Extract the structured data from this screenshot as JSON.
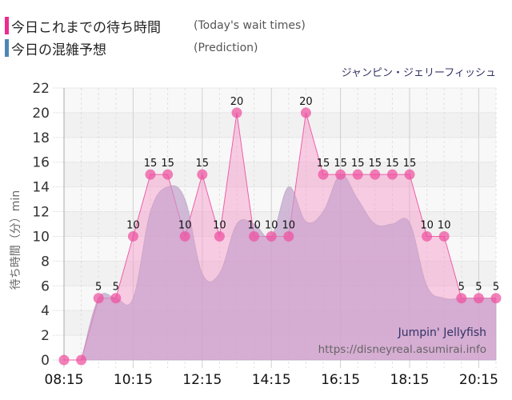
{
  "legend": {
    "today": {
      "label_jp": "今日これまでの待ち時間",
      "label_en": "(Today's wait times)",
      "color": "#ee2a8f"
    },
    "prediction": {
      "label_jp": "今日の混雑予想",
      "label_en": "(Prediction)",
      "color": "#4f86b5"
    }
  },
  "attraction_name": "ジャンピン・ジェリーフィッシュ",
  "watermark": {
    "name": "Jumpin' Jellyfish",
    "url": "https://disneyreal.asumirai.info"
  },
  "chart_data": {
    "type": "area",
    "title": "ジャンピン・ジェリーフィッシュ",
    "xlabel": "",
    "ylabel": "待ち時間（分）min",
    "ylim": [
      0,
      22
    ],
    "yticks": [
      0,
      2,
      4,
      6,
      8,
      10,
      12,
      14,
      16,
      18,
      20,
      22
    ],
    "xtick_labels": [
      "08:15",
      "10:15",
      "12:15",
      "14:15",
      "16:15",
      "18:15",
      "20:15"
    ],
    "grid": true,
    "legend_position": "top-left",
    "x": [
      "08:15",
      "08:45",
      "09:15",
      "09:45",
      "10:15",
      "10:45",
      "11:15",
      "11:45",
      "12:15",
      "12:45",
      "13:15",
      "13:45",
      "14:15",
      "14:45",
      "15:15",
      "15:45",
      "16:15",
      "16:45",
      "17:15",
      "17:45",
      "18:15",
      "18:45",
      "19:15",
      "19:45",
      "20:15",
      "20:45"
    ],
    "series": [
      {
        "name": "Today's wait times",
        "values": [
          0,
          0,
          5,
          5,
          10,
          15,
          15,
          10,
          15,
          10,
          20,
          10,
          10,
          10,
          20,
          15,
          15,
          15,
          15,
          15,
          15,
          10,
          10,
          5,
          5,
          5
        ]
      },
      {
        "name": "Prediction",
        "values": [
          null,
          0,
          5,
          5,
          5,
          12,
          14,
          13,
          7,
          7,
          11,
          11,
          10,
          14,
          11.2,
          12,
          15,
          13,
          11,
          11,
          11.1,
          6,
          5,
          5,
          5,
          5
        ]
      }
    ]
  }
}
